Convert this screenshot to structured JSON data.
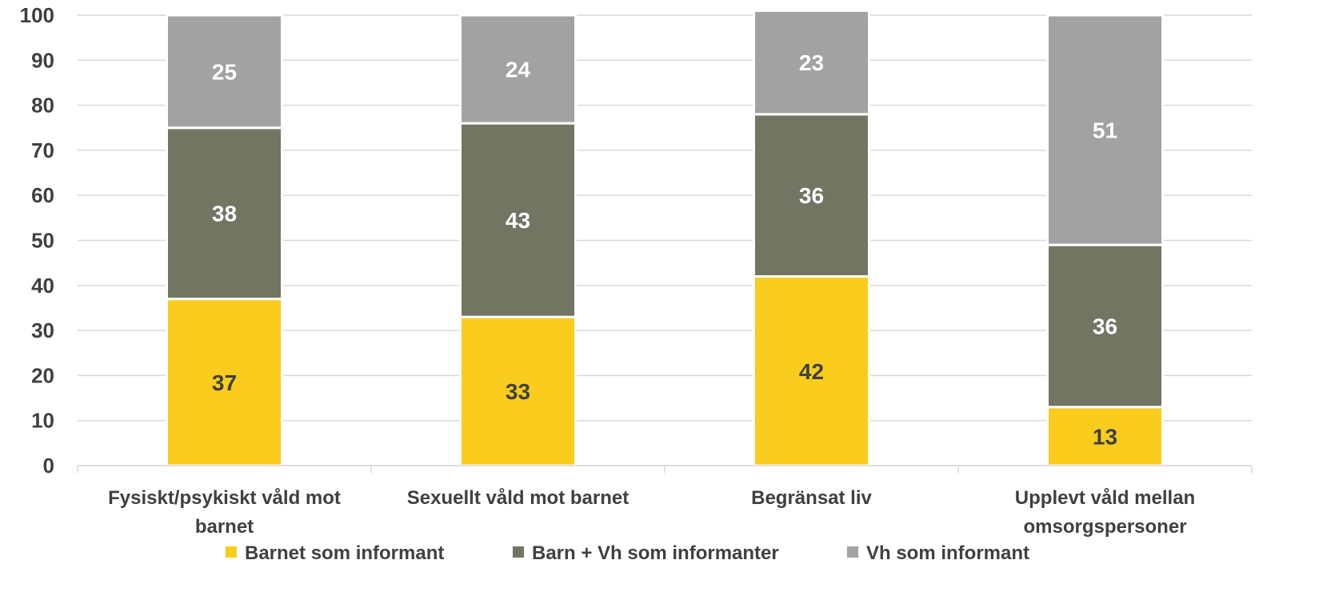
{
  "chart_data": {
    "type": "bar",
    "stacked": true,
    "categories": [
      [
        "Fysiskt/psykiskt våld mot",
        "barnet"
      ],
      [
        "Sexuellt våld mot barnet"
      ],
      [
        "Begränsat liv"
      ],
      [
        "Upplevt våld mellan",
        "omsorgspersoner"
      ]
    ],
    "series": [
      {
        "name": "Barnet som informant",
        "color": "#FACC1E",
        "label_color": "#404040",
        "values": [
          37,
          33,
          42,
          13
        ]
      },
      {
        "name": "Barn + Vh som informanter",
        "color": "#737563",
        "label_color": "#FFFFFF",
        "values": [
          38,
          43,
          36,
          36
        ]
      },
      {
        "name": "Vh som informant",
        "color": "#A2A2A2",
        "label_color": "#FFFFFF",
        "values": [
          25,
          24,
          23,
          51
        ]
      }
    ],
    "ylim": [
      0,
      100
    ],
    "yticks": [
      0,
      10,
      20,
      30,
      40,
      50,
      60,
      70,
      80,
      90,
      100
    ],
    "grid": true,
    "legend_position": "bottom",
    "title": "",
    "xlabel": "",
    "ylabel": ""
  }
}
